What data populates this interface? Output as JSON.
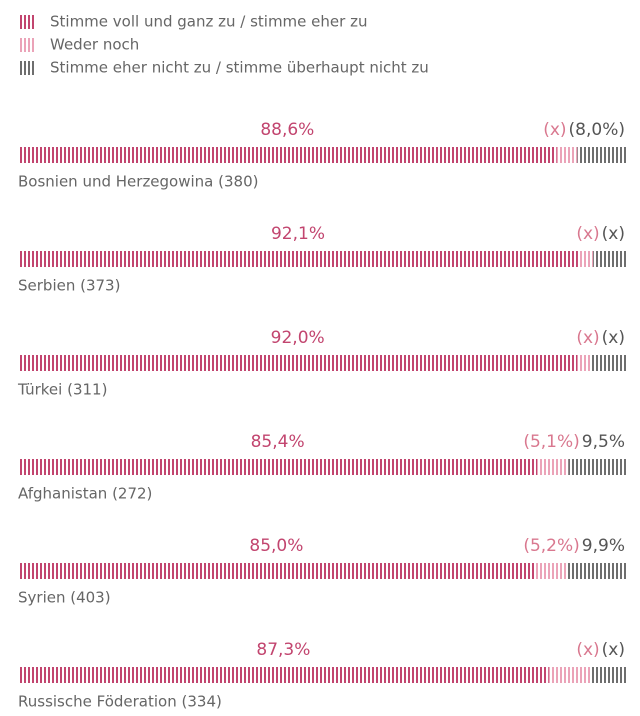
{
  "chart_data": {
    "type": "stacked-bar",
    "categories": [
      "Bosnien und Herzegowina (380)",
      "Serbien (373)",
      "Türkei (311)",
      "Afghanistan (272)",
      "Syrien (403)",
      "Russische Föderation (334)"
    ],
    "xlim": [
      0,
      100
    ],
    "series": [
      {
        "name": "Stimme voll und ganz zu / stimme eher zu",
        "color": "#c2456f",
        "label_color": "#c2456f",
        "values": [
          88.6,
          92.1,
          92.0,
          85.4,
          85.0,
          87.3
        ],
        "value_labels": [
          "88,6%",
          "92,1%",
          "92,0%",
          "85,4%",
          "85,0%",
          "87,3%"
        ]
      },
      {
        "name": "Weder noch",
        "color": "#eba3b8",
        "label_color": "#d9788f",
        "values": [
          3.4,
          2.5,
          2.2,
          5.1,
          5.2,
          7.0
        ],
        "value_labels": [
          "(x)",
          "(x)",
          "(x)",
          "(5,1%)",
          "(5,2%)",
          "(x)"
        ]
      },
      {
        "name": "Stimme eher nicht zu / stimme überhaupt nicht zu",
        "color": "#6e6e6e",
        "label_color": "#555555",
        "values": [
          8.0,
          5.4,
          5.8,
          9.5,
          9.9,
          5.7
        ],
        "value_labels": [
          "(8,0%)",
          "(x)",
          "(x)",
          "9,5%",
          "9,9%",
          "(x)"
        ]
      }
    ]
  }
}
